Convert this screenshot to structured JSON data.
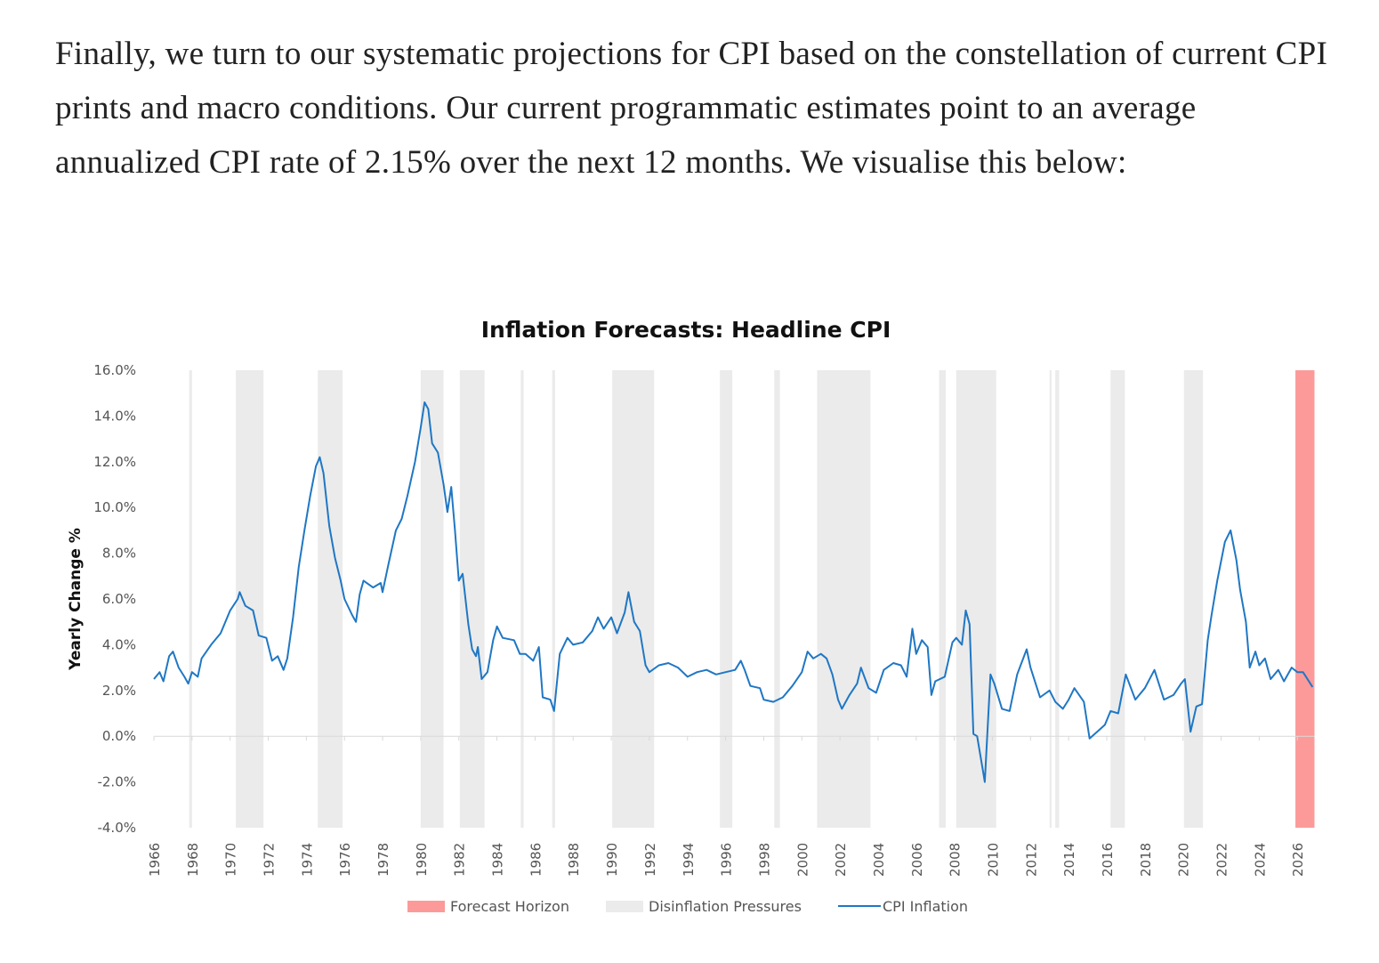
{
  "paragraph": "Finally, we turn to our systematic projections for CPI based on the constellation of current CPI prints and macro conditions. Our current programmatic estimates point to an average annualized CPI rate of 2.15% over the next 12 months. We visualise this below:",
  "chart_data": {
    "type": "line",
    "title": "Inflation Forecasts: Headline CPI",
    "xlabel": "",
    "ylabel": "Yearly Change %",
    "xlim": [
      1966,
      2026.9
    ],
    "ylim": [
      -4,
      16
    ],
    "y_ticks": [
      "-4.0%",
      "-2.0%",
      "0.0%",
      "2.0%",
      "4.0%",
      "6.0%",
      "8.0%",
      "10.0%",
      "12.0%",
      "14.0%",
      "16.0%"
    ],
    "x_ticks": [
      "1966",
      "1968",
      "1970",
      "1972",
      "1974",
      "1976",
      "1978",
      "1980",
      "1982",
      "1984",
      "1986",
      "1988",
      "1990",
      "1992",
      "1994",
      "1996",
      "1998",
      "2000",
      "2002",
      "2004",
      "2006",
      "2008",
      "2010",
      "2012",
      "2014",
      "2016",
      "2018",
      "2020",
      "2022",
      "2024",
      "2026"
    ],
    "grid": false,
    "legend_position": "bottom",
    "legend": [
      "Forecast Horizon",
      "Disinflation Pressures",
      "CPI Inflation"
    ],
    "colors": {
      "cpi": "#1f77c4",
      "disinflation": "#ebebeb",
      "forecast": "#fb9a99"
    },
    "forecast_horizon": [
      2025.9,
      2026.9
    ],
    "disinflation_periods": [
      [
        1967.85,
        1968.0
      ],
      [
        1970.3,
        1971.75
      ],
      [
        1974.6,
        1975.9
      ],
      [
        1980.0,
        1981.2
      ],
      [
        1982.05,
        1983.35
      ],
      [
        1985.25,
        1985.4
      ],
      [
        1986.9,
        1987.05
      ],
      [
        1990.05,
        1992.25
      ],
      [
        1995.7,
        1996.35
      ],
      [
        1998.55,
        1998.85
      ],
      [
        2000.8,
        2003.6
      ],
      [
        2007.2,
        2007.55
      ],
      [
        2008.1,
        2010.2
      ],
      [
        2013.0,
        2013.1
      ],
      [
        2013.3,
        2013.5
      ],
      [
        2016.2,
        2016.95
      ],
      [
        2020.05,
        2021.05
      ]
    ],
    "series": [
      {
        "name": "CPI Inflation",
        "x": [
          1966.0,
          1966.3,
          1966.5,
          1966.8,
          1967.0,
          1967.3,
          1967.6,
          1967.8,
          1968.0,
          1968.3,
          1968.5,
          1969.0,
          1969.5,
          1970.0,
          1970.4,
          1970.5,
          1970.8,
          1971.2,
          1971.5,
          1971.9,
          1972.2,
          1972.5,
          1972.8,
          1973.0,
          1973.3,
          1973.6,
          1973.9,
          1974.2,
          1974.5,
          1974.7,
          1974.9,
          1975.2,
          1975.5,
          1975.8,
          1976.0,
          1976.4,
          1976.6,
          1976.8,
          1977.0,
          1977.5,
          1977.9,
          1978.0,
          1978.3,
          1978.7,
          1979.0,
          1979.3,
          1979.7,
          1980.0,
          1980.2,
          1980.4,
          1980.6,
          1980.9,
          1981.2,
          1981.4,
          1981.6,
          1981.8,
          1982.0,
          1982.2,
          1982.5,
          1982.7,
          1982.9,
          1983.0,
          1983.2,
          1983.5,
          1983.8,
          1984.0,
          1984.3,
          1984.9,
          1985.2,
          1985.5,
          1985.9,
          1986.2,
          1986.4,
          1986.8,
          1987.0,
          1987.3,
          1987.7,
          1988.0,
          1988.5,
          1989.0,
          1989.3,
          1989.6,
          1990.0,
          1990.3,
          1990.7,
          1990.9,
          1991.2,
          1991.5,
          1991.8,
          1992.0,
          1992.5,
          1993.0,
          1993.5,
          1994.0,
          1994.5,
          1995.0,
          1995.5,
          1996.0,
          1996.5,
          1996.8,
          1997.0,
          1997.3,
          1997.8,
          1998.0,
          1998.5,
          1999.0,
          1999.5,
          2000.0,
          2000.3,
          2000.6,
          2001.0,
          2001.3,
          2001.6,
          2001.9,
          2002.1,
          2002.5,
          2002.9,
          2003.1,
          2003.5,
          2003.9,
          2004.3,
          2004.8,
          2005.2,
          2005.5,
          2005.8,
          2006.0,
          2006.3,
          2006.6,
          2006.8,
          2007.0,
          2007.5,
          2007.9,
          2008.1,
          2008.4,
          2008.6,
          2008.8,
          2009.0,
          2009.2,
          2009.5,
          2009.6,
          2009.9,
          2010.1,
          2010.5,
          2010.9,
          2011.3,
          2011.8,
          2012.0,
          2012.5,
          2013.0,
          2013.3,
          2013.7,
          2014.0,
          2014.3,
          2014.8,
          2015.1,
          2015.5,
          2015.9,
          2016.2,
          2016.6,
          2017.0,
          2017.5,
          2018.0,
          2018.5,
          2019.0,
          2019.5,
          2019.9,
          2020.1,
          2020.4,
          2020.7,
          2021.0,
          2021.3,
          2021.5,
          2021.8,
          2022.2,
          2022.5,
          2022.8,
          2023.0,
          2023.3,
          2023.5,
          2023.8,
          2024.0,
          2024.3,
          2024.6,
          2025.0,
          2025.3,
          2025.7,
          2026.0,
          2026.3,
          2026.8
        ],
        "values": [
          2.5,
          2.8,
          2.4,
          3.5,
          3.7,
          3.0,
          2.6,
          2.3,
          2.8,
          2.6,
          3.4,
          4.0,
          4.5,
          5.5,
          6.0,
          6.3,
          5.7,
          5.5,
          4.4,
          4.3,
          3.3,
          3.5,
          2.9,
          3.4,
          5.2,
          7.4,
          9.0,
          10.5,
          11.8,
          12.2,
          11.5,
          9.2,
          7.8,
          6.8,
          6.0,
          5.3,
          5.0,
          6.2,
          6.8,
          6.5,
          6.7,
          6.3,
          7.5,
          9.0,
          9.5,
          10.5,
          12.0,
          13.5,
          14.6,
          14.3,
          12.8,
          12.4,
          11.0,
          9.8,
          10.9,
          9.0,
          6.8,
          7.1,
          4.9,
          3.8,
          3.5,
          3.9,
          2.5,
          2.8,
          4.2,
          4.8,
          4.3,
          4.2,
          3.6,
          3.6,
          3.3,
          3.9,
          1.7,
          1.6,
          1.1,
          3.6,
          4.3,
          4.0,
          4.1,
          4.6,
          5.2,
          4.7,
          5.2,
          4.5,
          5.4,
          6.3,
          5.0,
          4.6,
          3.1,
          2.8,
          3.1,
          3.2,
          3.0,
          2.6,
          2.8,
          2.9,
          2.7,
          2.8,
          2.9,
          3.3,
          2.9,
          2.2,
          2.1,
          1.6,
          1.5,
          1.7,
          2.2,
          2.8,
          3.7,
          3.4,
          3.6,
          3.4,
          2.7,
          1.6,
          1.2,
          1.8,
          2.3,
          3.0,
          2.1,
          1.9,
          2.9,
          3.2,
          3.1,
          2.6,
          4.7,
          3.6,
          4.2,
          3.9,
          1.8,
          2.4,
          2.6,
          4.1,
          4.3,
          4.0,
          5.5,
          4.9,
          0.1,
          0.0,
          -1.5,
          -2.0,
          2.7,
          2.3,
          1.2,
          1.1,
          2.7,
          3.8,
          3.0,
          1.7,
          2.0,
          1.5,
          1.2,
          1.6,
          2.1,
          1.5,
          -0.1,
          0.2,
          0.5,
          1.1,
          1.0,
          2.7,
          1.6,
          2.1,
          2.9,
          1.6,
          1.8,
          2.3,
          2.5,
          0.2,
          1.3,
          1.4,
          4.2,
          5.3,
          6.8,
          8.5,
          9.0,
          7.7,
          6.4,
          5.0,
          3.0,
          3.7,
          3.1,
          3.4,
          2.5,
          2.9,
          2.4,
          3.0,
          2.8,
          2.8,
          2.15
        ]
      }
    ]
  }
}
